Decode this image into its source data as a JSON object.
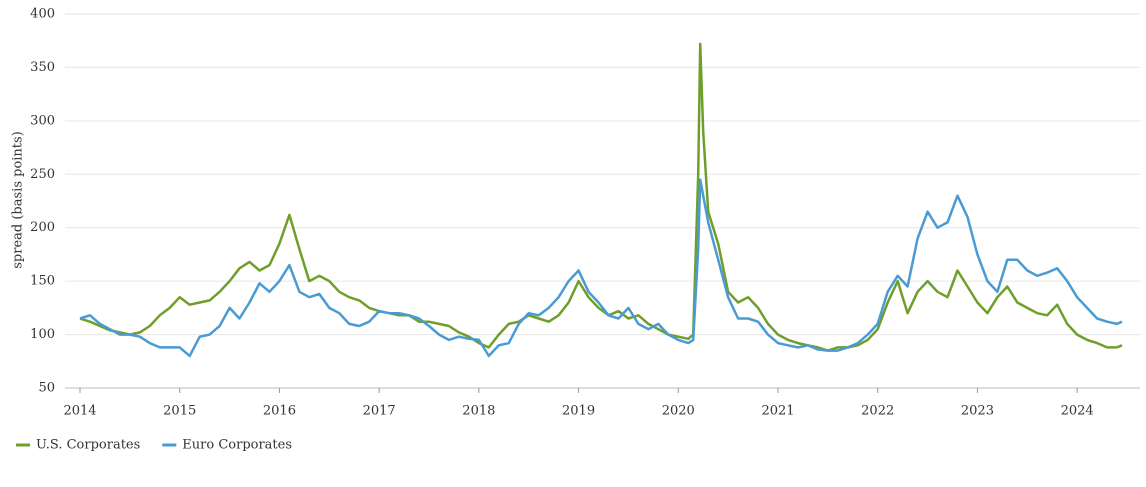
{
  "chart_data": {
    "type": "line",
    "y_label": "spread (basis points)",
    "x": [
      2014.0,
      2014.1,
      2014.2,
      2014.3,
      2014.4,
      2014.5,
      2014.6,
      2014.7,
      2014.8,
      2014.9,
      2015.0,
      2015.1,
      2015.2,
      2015.3,
      2015.4,
      2015.5,
      2015.6,
      2015.7,
      2015.8,
      2015.9,
      2016.0,
      2016.1,
      2016.2,
      2016.3,
      2016.4,
      2016.5,
      2016.6,
      2016.7,
      2016.8,
      2016.9,
      2017.0,
      2017.1,
      2017.2,
      2017.3,
      2017.4,
      2017.5,
      2017.6,
      2017.7,
      2017.8,
      2017.9,
      2018.0,
      2018.1,
      2018.2,
      2018.3,
      2018.4,
      2018.5,
      2018.6,
      2018.7,
      2018.8,
      2018.9,
      2019.0,
      2019.1,
      2019.2,
      2019.3,
      2019.4,
      2019.5,
      2019.6,
      2019.7,
      2019.8,
      2019.9,
      2020.0,
      2020.1,
      2020.15,
      2020.2,
      2020.22,
      2020.25,
      2020.3,
      2020.4,
      2020.5,
      2020.6,
      2020.7,
      2020.8,
      2020.9,
      2021.0,
      2021.1,
      2021.2,
      2021.3,
      2021.4,
      2021.5,
      2021.6,
      2021.7,
      2021.8,
      2021.9,
      2022.0,
      2022.1,
      2022.2,
      2022.3,
      2022.4,
      2022.5,
      2022.6,
      2022.7,
      2022.8,
      2022.9,
      2023.0,
      2023.1,
      2023.2,
      2023.3,
      2023.4,
      2023.5,
      2023.6,
      2023.7,
      2023.8,
      2023.9,
      2024.0,
      2024.1,
      2024.2,
      2024.3,
      2024.4,
      2024.45
    ],
    "series": [
      {
        "name": "U.S. Corporates",
        "color": "#6f9f2a",
        "values": [
          115,
          112,
          108,
          104,
          102,
          100,
          102,
          108,
          118,
          125,
          135,
          128,
          130,
          132,
          140,
          150,
          162,
          168,
          160,
          165,
          185,
          212,
          180,
          150,
          155,
          150,
          140,
          135,
          132,
          125,
          122,
          120,
          118,
          118,
          112,
          112,
          110,
          108,
          102,
          98,
          92,
          88,
          100,
          110,
          112,
          118,
          115,
          112,
          118,
          130,
          150,
          135,
          125,
          118,
          122,
          115,
          118,
          110,
          105,
          100,
          98,
          96,
          100,
          250,
          372,
          290,
          215,
          185,
          140,
          130,
          135,
          125,
          110,
          100,
          95,
          92,
          90,
          88,
          85,
          88,
          88,
          90,
          95,
          105,
          130,
          150,
          120,
          140,
          150,
          140,
          135,
          160,
          145,
          130,
          120,
          135,
          145,
          130,
          125,
          120,
          118,
          128,
          110,
          100,
          95,
          92,
          88,
          88,
          90
        ]
      },
      {
        "name": "Euro Corporates",
        "color": "#4a9bd4",
        "values": [
          115,
          118,
          110,
          105,
          100,
          100,
          98,
          92,
          88,
          88,
          88,
          80,
          98,
          100,
          108,
          125,
          115,
          130,
          148,
          140,
          150,
          165,
          140,
          135,
          138,
          125,
          120,
          110,
          108,
          112,
          122,
          120,
          120,
          118,
          115,
          108,
          100,
          95,
          98,
          96,
          95,
          80,
          90,
          92,
          110,
          120,
          118,
          125,
          135,
          150,
          160,
          140,
          130,
          118,
          115,
          125,
          110,
          105,
          110,
          100,
          95,
          92,
          95,
          180,
          245,
          230,
          205,
          170,
          135,
          115,
          115,
          112,
          100,
          92,
          90,
          88,
          90,
          86,
          85,
          85,
          88,
          92,
          100,
          110,
          140,
          155,
          145,
          190,
          215,
          200,
          205,
          230,
          210,
          175,
          150,
          140,
          170,
          170,
          160,
          155,
          158,
          162,
          150,
          135,
          125,
          115,
          112,
          110,
          112
        ]
      }
    ],
    "xlim": [
      2014,
      2024.5
    ],
    "xticks": [
      2014,
      2015,
      2016,
      2017,
      2018,
      2019,
      2020,
      2021,
      2022,
      2023,
      2024
    ],
    "ylim": [
      50,
      400
    ],
    "yticks": [
      50,
      100,
      150,
      200,
      250,
      300,
      350,
      400
    ],
    "grid": true,
    "legend": "bottom-left"
  }
}
